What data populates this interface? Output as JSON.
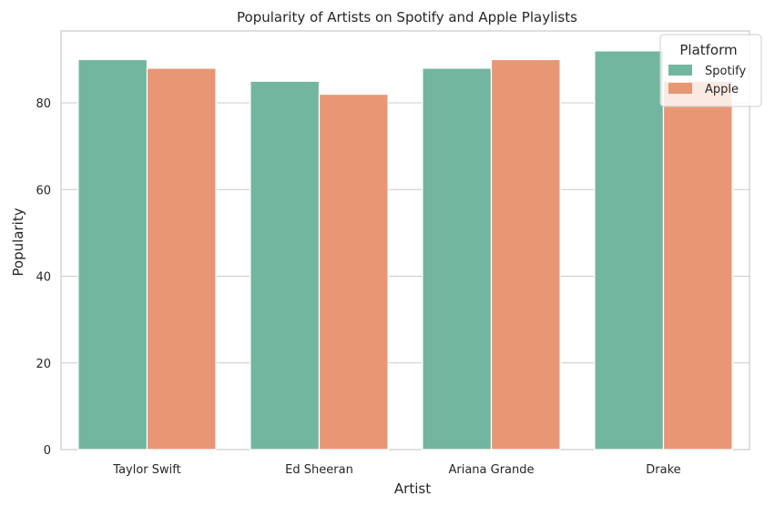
{
  "chart_data": {
    "type": "bar",
    "title": "Popularity of Artists on Spotify and Apple Playlists",
    "xlabel": "Artist",
    "ylabel": "Popularity",
    "categories": [
      "Taylor Swift",
      "Ed Sheeran",
      "Ariana Grande",
      "Drake"
    ],
    "series": [
      {
        "name": "Spotify",
        "color": "#72b6a0",
        "values": [
          90,
          85,
          88,
          92
        ]
      },
      {
        "name": "Apple",
        "color": "#e99675",
        "values": [
          88,
          82,
          90,
          85
        ]
      }
    ],
    "ylim": [
      0,
      96.6
    ],
    "yticks": [
      0,
      20,
      40,
      60,
      80
    ],
    "grid": true,
    "legend": {
      "title": "Platform",
      "placement": "top-right"
    }
  }
}
